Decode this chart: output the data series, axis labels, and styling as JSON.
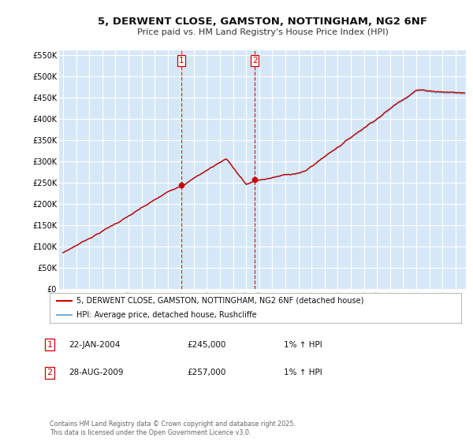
{
  "title": "5, DERWENT CLOSE, GAMSTON, NOTTINGHAM, NG2 6NF",
  "subtitle": "Price paid vs. HM Land Registry's House Price Index (HPI)",
  "ylim": [
    0,
    560000
  ],
  "yticks": [
    0,
    50000,
    100000,
    150000,
    200000,
    250000,
    300000,
    350000,
    400000,
    450000,
    500000,
    550000
  ],
  "ytick_labels": [
    "£0",
    "£50K",
    "£100K",
    "£150K",
    "£200K",
    "£250K",
    "£300K",
    "£350K",
    "£400K",
    "£450K",
    "£500K",
    "£550K"
  ],
  "background_color": "#ffffff",
  "plot_bg_color": "#d6e8f7",
  "grid_color": "#ffffff",
  "hpi_line_color": "#7bafd4",
  "price_line_color": "#cc0000",
  "marker_box_color": "#cc0000",
  "vline_color": "#cc0000",
  "legend_line1": "5, DERWENT CLOSE, GAMSTON, NOTTINGHAM, NG2 6NF (detached house)",
  "legend_line2": "HPI: Average price, detached house, Rushcliffe",
  "footer": "Contains HM Land Registry data © Crown copyright and database right 2025.\nThis data is licensed under the Open Government Licence v3.0.",
  "xlim_start": 1994.7,
  "xlim_end": 2025.8,
  "xticks": [
    1995,
    1996,
    1997,
    1998,
    1999,
    2000,
    2001,
    2002,
    2003,
    2004,
    2005,
    2006,
    2007,
    2008,
    2009,
    2010,
    2011,
    2012,
    2013,
    2014,
    2015,
    2016,
    2017,
    2018,
    2019,
    2020,
    2021,
    2022,
    2023,
    2024,
    2025
  ],
  "t1": 2004.055,
  "t2": 2009.654,
  "price1": 245000,
  "price2": 257000
}
